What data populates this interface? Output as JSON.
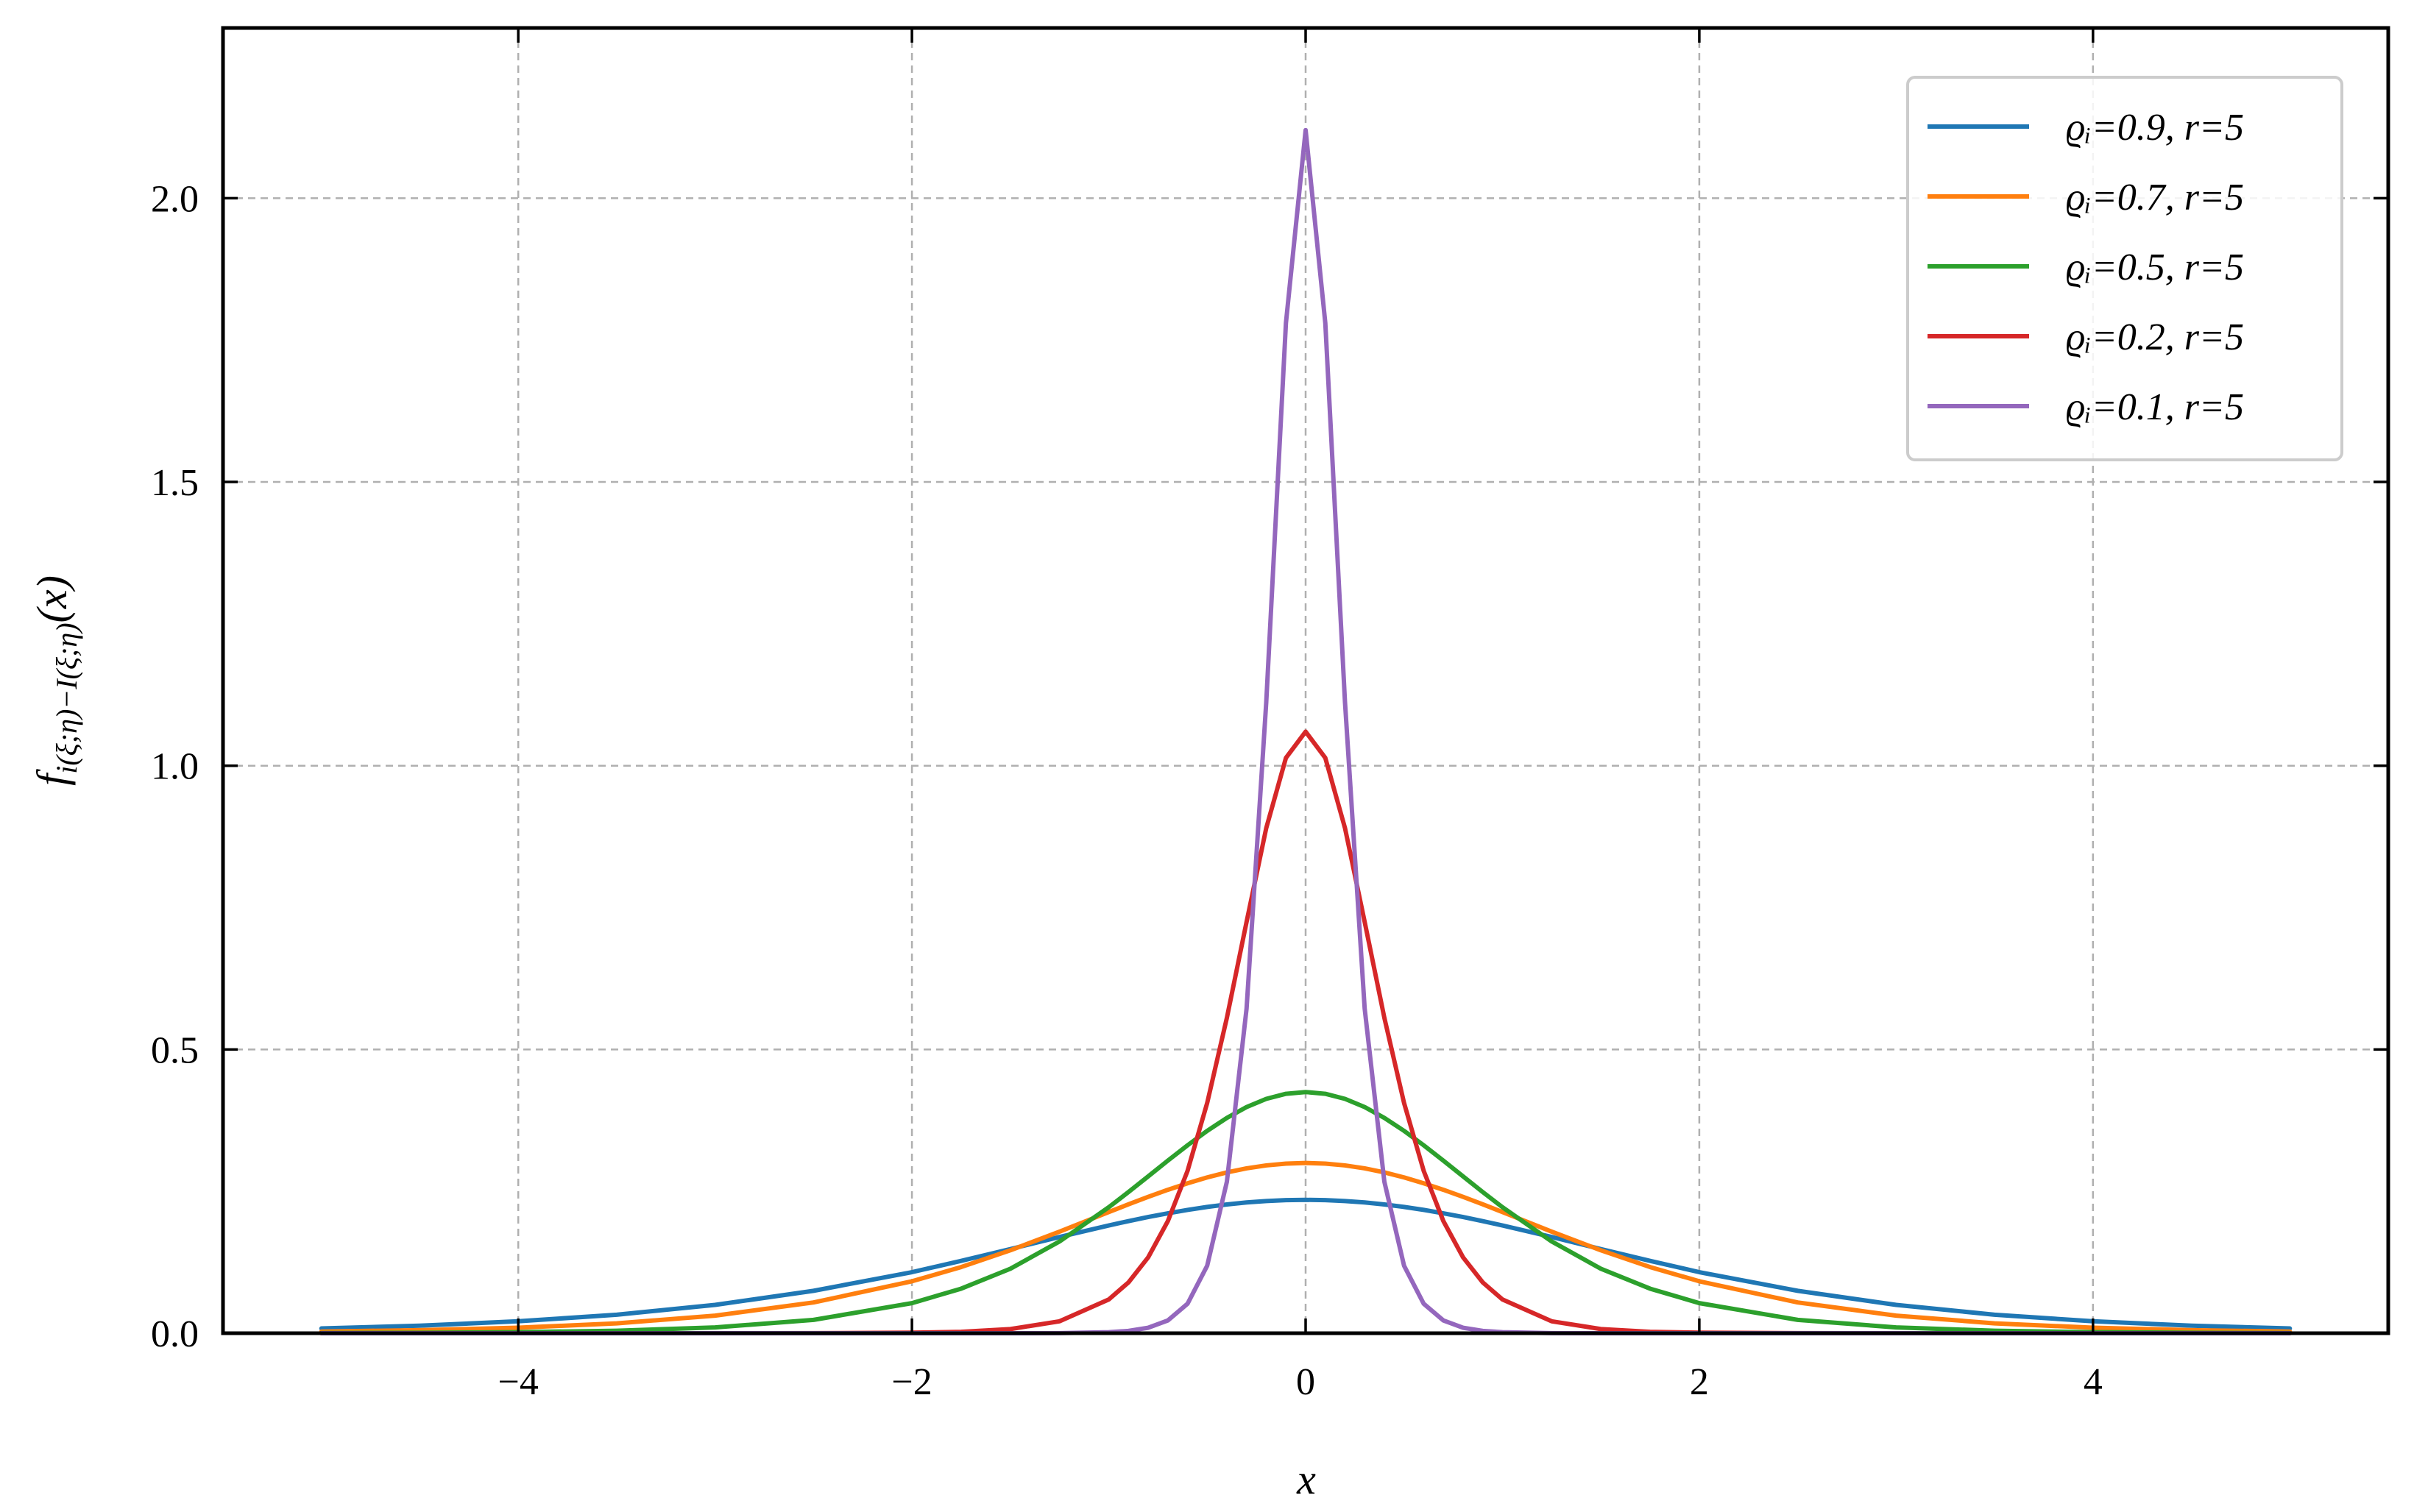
{
  "chart_data": {
    "type": "line",
    "xlabel": "x",
    "ylabel": [
      "f",
      "i(ξ;η)−I(ξ;η)",
      "(x)"
    ],
    "x": [
      -5,
      -4.5,
      -4,
      -3.5,
      -3,
      -2.5,
      -2,
      -1.75,
      -1.5,
      -1.25,
      -1,
      -0.9,
      -0.8,
      -0.7,
      -0.6,
      -0.5,
      -0.4,
      -0.3,
      -0.2,
      -0.1,
      0,
      0.1,
      0.2,
      0.3,
      0.4,
      0.5,
      0.6,
      0.7,
      0.8,
      0.9,
      1,
      1.25,
      1.5,
      1.75,
      2,
      2.5,
      3,
      3.5,
      4,
      4.5,
      5
    ],
    "series": [
      {
        "name": "ϱᵢ=0.9, r=5",
        "color": "#1f77b4",
        "values": [
          0.0084,
          0.0133,
          0.021,
          0.0326,
          0.0499,
          0.0747,
          0.1076,
          0.1275,
          0.1483,
          0.1696,
          0.1899,
          0.1975,
          0.2047,
          0.2113,
          0.2173,
          0.2225,
          0.2269,
          0.2304,
          0.2329,
          0.2345,
          0.235,
          0.2345,
          0.2329,
          0.2304,
          0.2269,
          0.2225,
          0.2173,
          0.2113,
          0.2047,
          0.1975,
          0.1899,
          0.1696,
          0.1483,
          0.1275,
          0.1076,
          0.0747,
          0.0499,
          0.0326,
          0.021,
          0.0133,
          0.0084
        ]
      },
      {
        "name": "ϱᵢ=0.7, r=5",
        "color": "#ff7f0e",
        "values": [
          0.003,
          0.0054,
          0.0097,
          0.0174,
          0.031,
          0.0542,
          0.0915,
          0.1166,
          0.1461,
          0.179,
          0.2135,
          0.2271,
          0.2403,
          0.2527,
          0.2642,
          0.2745,
          0.2834,
          0.2905,
          0.2957,
          0.2989,
          0.3,
          0.2989,
          0.2957,
          0.2905,
          0.2834,
          0.2745,
          0.2642,
          0.2527,
          0.2403,
          0.2271,
          0.2135,
          0.179,
          0.1461,
          0.1166,
          0.0915,
          0.0542,
          0.031,
          0.0174,
          0.0097,
          0.0054,
          0.003
        ]
      },
      {
        "name": "ϱᵢ=0.5, r=5",
        "color": "#2ca02c",
        "values": [
          0.0003,
          0.0008,
          0.0019,
          0.0044,
          0.0102,
          0.0235,
          0.053,
          0.0785,
          0.1136,
          0.1617,
          0.222,
          0.2487,
          0.2763,
          0.3041,
          0.3311,
          0.3566,
          0.3794,
          0.3985,
          0.4129,
          0.4219,
          0.425,
          0.4219,
          0.4129,
          0.3985,
          0.3794,
          0.3566,
          0.3311,
          0.3041,
          0.2763,
          0.2487,
          0.222,
          0.1617,
          0.1136,
          0.0785,
          0.053,
          0.0235,
          0.0102,
          0.0044,
          0.0019,
          0.0008,
          0.0003
        ]
      },
      {
        "name": "ϱᵢ=0.2, r=5",
        "color": "#d62728",
        "values": [
          0,
          0,
          0,
          0,
          0,
          0.0001,
          0.0009,
          0.0025,
          0.0073,
          0.021,
          0.0595,
          0.0895,
          0.1336,
          0.1974,
          0.286,
          0.4058,
          0.5558,
          0.7248,
          0.8902,
          1.0138,
          1.06,
          1.0138,
          0.8902,
          0.7248,
          0.5558,
          0.4058,
          0.286,
          0.1974,
          0.1336,
          0.0895,
          0.0595,
          0.021,
          0.0073,
          0.0025,
          0.0009,
          0.0001,
          0,
          0,
          0,
          0,
          0
        ]
      },
      {
        "name": "ϱᵢ=0.1, r=5",
        "color": "#9467bd",
        "values": [
          0,
          0,
          0,
          0,
          0,
          0,
          0,
          0,
          0,
          0.0002,
          0.0018,
          0.0041,
          0.0096,
          0.0224,
          0.0519,
          0.119,
          0.267,
          0.572,
          1.112,
          1.78,
          2.12,
          1.78,
          1.112,
          0.572,
          0.267,
          0.119,
          0.0519,
          0.0224,
          0.0096,
          0.0041,
          0.0018,
          0.0002,
          0,
          0,
          0,
          0,
          0,
          0,
          0,
          0,
          0
        ]
      }
    ],
    "xlim": [
      -5.5,
      5.5
    ],
    "ylim": [
      0,
      2.3
    ],
    "xticks": [
      {
        "value": -4,
        "label": "−4"
      },
      {
        "value": -2,
        "label": "−2"
      },
      0,
      2,
      4
    ],
    "yticks": [
      {
        "value": 0,
        "label": "0.0"
      },
      {
        "value": 0.5,
        "label": "0.5"
      },
      {
        "value": 1,
        "label": "1.0"
      },
      {
        "value": 1.5,
        "label": "1.5"
      },
      {
        "value": 2,
        "label": "2.0"
      }
    ],
    "grid": true,
    "legend": "upper right"
  }
}
